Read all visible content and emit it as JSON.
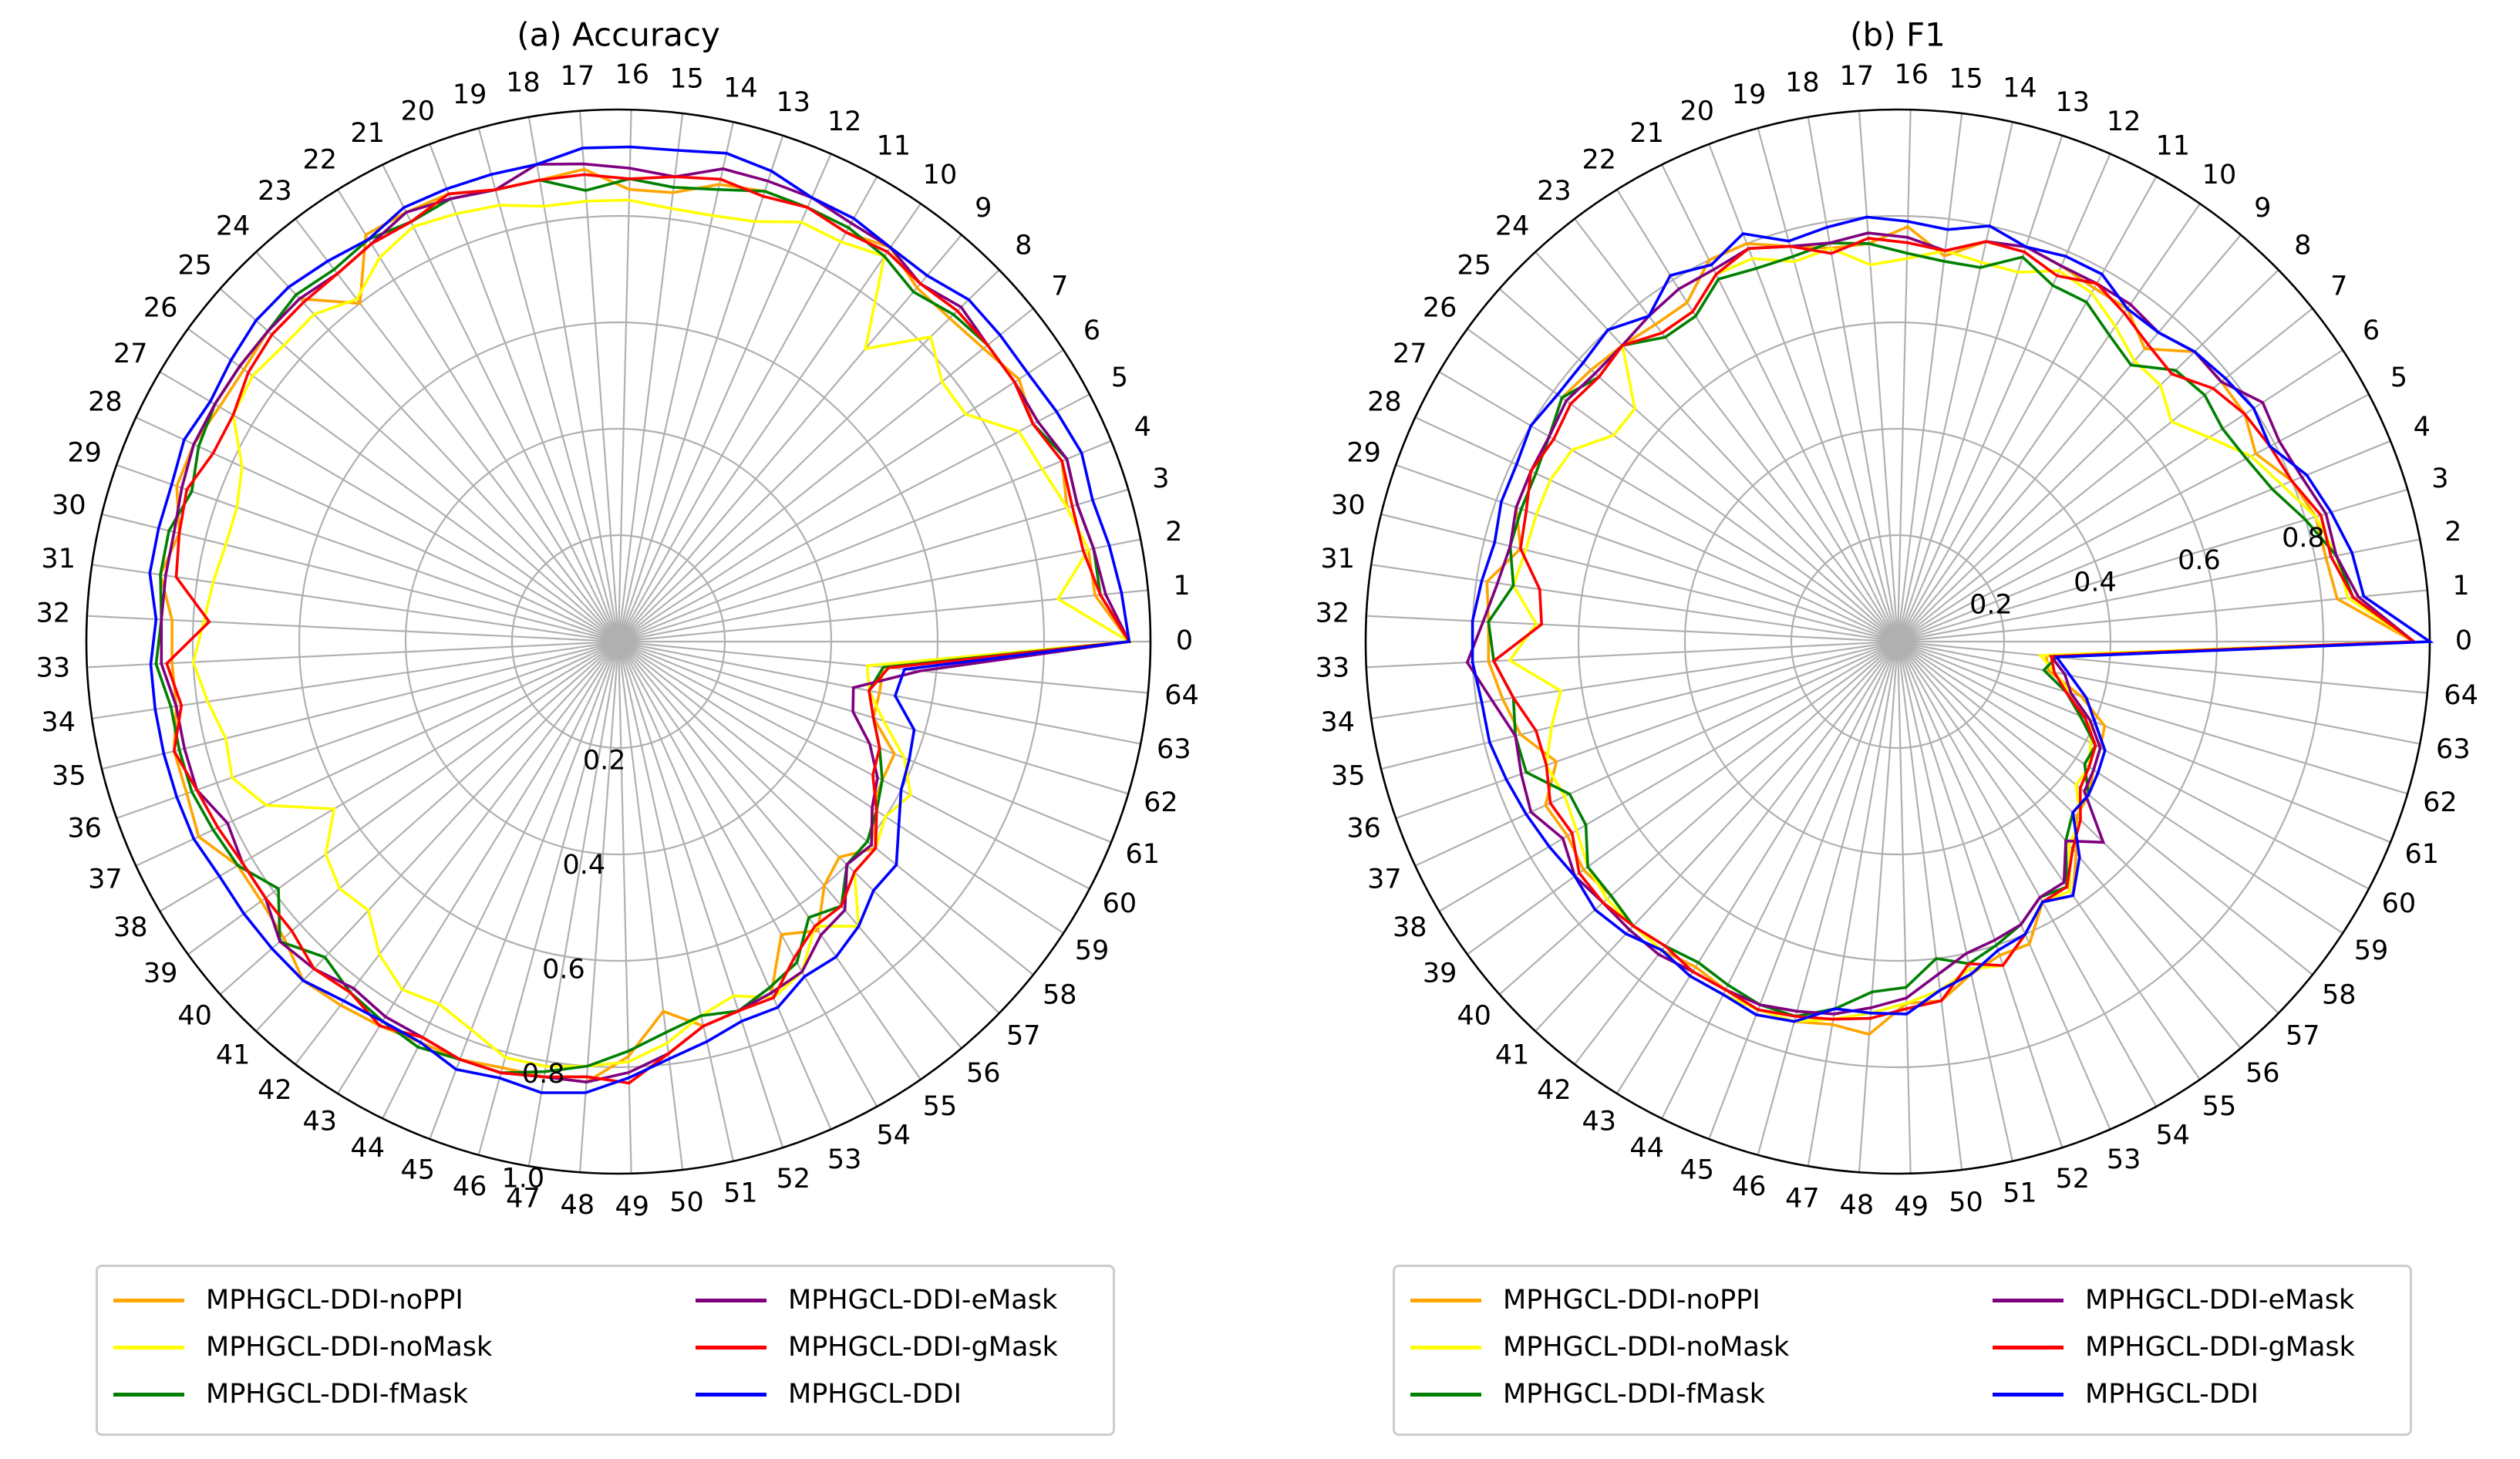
{
  "chart_data": [
    {
      "type": "radar",
      "title": "(a) Accuracy",
      "categories": [
        "0",
        "1",
        "2",
        "3",
        "4",
        "5",
        "6",
        "7",
        "8",
        "9",
        "10",
        "11",
        "12",
        "13",
        "14",
        "15",
        "16",
        "17",
        "18",
        "19",
        "20",
        "21",
        "22",
        "23",
        "24",
        "25",
        "26",
        "27",
        "28",
        "29",
        "30",
        "31",
        "32",
        "33",
        "34",
        "35",
        "36",
        "37",
        "38",
        "39",
        "40",
        "41",
        "42",
        "43",
        "44",
        "45",
        "46",
        "47",
        "48",
        "49",
        "50",
        "51",
        "52",
        "53",
        "54",
        "55",
        "56",
        "57",
        "58",
        "59",
        "60",
        "61",
        "62",
        "63",
        "64"
      ],
      "rticks": [
        0.2,
        0.4,
        0.6,
        0.8,
        1.0
      ],
      "rlim": [
        0,
        1.0
      ],
      "grid": true,
      "legend_position": "bottom",
      "series": [
        {
          "name": "MPHGCL-DDI-noPPI",
          "color": "#ffa500",
          "values": [
            0.96,
            0.9,
            0.9,
            0.88,
            0.9,
            0.88,
            0.9,
            0.88,
            0.87,
            0.87,
            0.9,
            0.88,
            0.89,
            0.89,
            0.88,
            0.85,
            0.85,
            0.89,
            0.88,
            0.88,
            0.9,
            0.9,
            0.9,
            0.8,
            0.88,
            0.88,
            0.87,
            0.87,
            0.88,
            0.88,
            0.85,
            0.87,
            0.84,
            0.84,
            0.84,
            0.86,
            0.86,
            0.87,
            0.83,
            0.83,
            0.84,
            0.87,
            0.86,
            0.85,
            0.84,
            0.84,
            0.83,
            0.83,
            0.83,
            0.78,
            0.7,
            0.74,
            0.73,
            0.72,
            0.63,
            0.66,
            0.6,
            0.58,
            0.62,
            0.57,
            0.56,
            0.56,
            0.5,
            0.5,
            0.5
          ]
        },
        {
          "name": "MPHGCL-DDI-noMask",
          "color": "#ffff00",
          "values": [
            0.96,
            0.83,
            0.9,
            0.88,
            0.86,
            0.85,
            0.78,
            0.78,
            0.82,
            0.72,
            0.88,
            0.86,
            0.86,
            0.83,
            0.82,
            0.82,
            0.83,
            0.83,
            0.83,
            0.85,
            0.86,
            0.87,
            0.85,
            0.81,
            0.84,
            0.84,
            0.85,
            0.84,
            0.78,
            0.76,
            0.76,
            0.77,
            0.78,
            0.8,
            0.78,
            0.76,
            0.77,
            0.73,
            0.62,
            0.68,
            0.7,
            0.69,
            0.74,
            0.77,
            0.76,
            0.78,
            0.81,
            0.81,
            0.8,
            0.79,
            0.76,
            0.72,
            0.7,
            0.73,
            0.71,
            0.65,
            0.7,
            0.62,
            0.62,
            0.6,
            0.62,
            0.58,
            0.52,
            0.48,
            0.47
          ]
        },
        {
          "name": "MPHGCL-DDI-fMask",
          "color": "#008000",
          "values": [
            0.96,
            0.91,
            0.91,
            0.9,
            0.91,
            0.88,
            0.89,
            0.89,
            0.88,
            0.86,
            0.88,
            0.89,
            0.89,
            0.89,
            0.87,
            0.86,
            0.87,
            0.85,
            0.88,
            0.88,
            0.89,
            0.88,
            0.89,
            0.88,
            0.89,
            0.88,
            0.88,
            0.88,
            0.87,
            0.85,
            0.87,
            0.87,
            0.86,
            0.87,
            0.85,
            0.85,
            0.85,
            0.84,
            0.83,
            0.79,
            0.85,
            0.81,
            0.83,
            0.84,
            0.85,
            0.84,
            0.84,
            0.82,
            0.8,
            0.77,
            0.74,
            0.72,
            0.73,
            0.71,
            0.69,
            0.63,
            0.65,
            0.6,
            0.6,
            0.58,
            0.56,
            0.53,
            0.5,
            0.48,
            0.5
          ]
        },
        {
          "name": "MPHGCL-DDI-eMask",
          "color": "#800080",
          "values": [
            0.96,
            0.92,
            0.91,
            0.9,
            0.91,
            0.89,
            0.89,
            0.89,
            0.9,
            0.88,
            0.9,
            0.9,
            0.91,
            0.91,
            0.91,
            0.88,
            0.89,
            0.9,
            0.91,
            0.88,
            0.89,
            0.9,
            0.88,
            0.87,
            0.88,
            0.88,
            0.88,
            0.88,
            0.88,
            0.87,
            0.86,
            0.86,
            0.86,
            0.86,
            0.84,
            0.84,
            0.84,
            0.81,
            0.82,
            0.82,
            0.85,
            0.84,
            0.82,
            0.83,
            0.83,
            0.84,
            0.84,
            0.83,
            0.83,
            0.81,
            0.78,
            0.74,
            0.73,
            0.72,
            0.71,
            0.67,
            0.66,
            0.6,
            0.61,
            0.57,
            0.55,
            0.51,
            0.46,
            0.45,
            0.57
          ]
        },
        {
          "name": "MPHGCL-DDI-gMask",
          "color": "#ff0000",
          "values": [
            0.96,
            0.91,
            0.89,
            0.89,
            0.9,
            0.88,
            0.89,
            0.89,
            0.89,
            0.88,
            0.89,
            0.88,
            0.89,
            0.88,
            0.89,
            0.88,
            0.87,
            0.88,
            0.88,
            0.88,
            0.9,
            0.88,
            0.88,
            0.87,
            0.87,
            0.87,
            0.86,
            0.84,
            0.84,
            0.86,
            0.85,
            0.84,
            0.77,
            0.85,
            0.83,
            0.86,
            0.84,
            0.83,
            0.82,
            0.82,
            0.82,
            0.84,
            0.83,
            0.85,
            0.83,
            0.84,
            0.84,
            0.83,
            0.82,
            0.83,
            0.78,
            0.74,
            0.73,
            0.73,
            0.68,
            0.65,
            0.65,
            0.62,
            0.62,
            0.58,
            0.54,
            0.53,
            0.5,
            0.48,
            0.51
          ]
        },
        {
          "name": "MPHGCL-DDI",
          "color": "#0000ff",
          "values": [
            0.96,
            0.95,
            0.94,
            0.93,
            0.94,
            0.93,
            0.92,
            0.92,
            0.92,
            0.9,
            0.9,
            0.91,
            0.91,
            0.93,
            0.94,
            0.93,
            0.93,
            0.93,
            0.91,
            0.91,
            0.91,
            0.91,
            0.89,
            0.9,
            0.91,
            0.91,
            0.9,
            0.89,
            0.9,
            0.89,
            0.89,
            0.89,
            0.87,
            0.88,
            0.88,
            0.88,
            0.88,
            0.88,
            0.87,
            0.87,
            0.87,
            0.87,
            0.85,
            0.84,
            0.84,
            0.86,
            0.85,
            0.86,
            0.85,
            0.82,
            0.79,
            0.77,
            0.75,
            0.75,
            0.72,
            0.72,
            0.7,
            0.67,
            0.67,
            0.63,
            0.6,
            0.59,
            0.58,
            0.53,
            0.54
          ]
        }
      ]
    },
    {
      "type": "radar",
      "title": "(b) F1",
      "categories": [
        "0",
        "1",
        "2",
        "3",
        "4",
        "5",
        "6",
        "7",
        "8",
        "9",
        "10",
        "11",
        "12",
        "13",
        "14",
        "15",
        "16",
        "17",
        "18",
        "19",
        "20",
        "21",
        "22",
        "23",
        "24",
        "25",
        "26",
        "27",
        "28",
        "29",
        "30",
        "31",
        "32",
        "33",
        "34",
        "35",
        "36",
        "37",
        "38",
        "39",
        "40",
        "41",
        "42",
        "43",
        "44",
        "45",
        "46",
        "47",
        "48",
        "49",
        "50",
        "51",
        "52",
        "53",
        "54",
        "55",
        "56",
        "57",
        "58",
        "59",
        "60",
        "61",
        "62",
        "63",
        "64"
      ],
      "rticks": [
        0.2,
        0.4,
        0.6,
        0.8
      ],
      "rlim": [
        0,
        1.0
      ],
      "grid": true,
      "legend_position": "bottom",
      "series": [
        {
          "name": "MPHGCL-DDI-noPPI",
          "color": "#ffa500",
          "values": [
            0.97,
            0.83,
            0.82,
            0.82,
            0.8,
            0.76,
            0.78,
            0.78,
            0.78,
            0.72,
            0.76,
            0.76,
            0.77,
            0.78,
            0.77,
            0.73,
            0.78,
            0.75,
            0.75,
            0.77,
            0.8,
            0.8,
            0.75,
            0.75,
            0.76,
            0.77,
            0.78,
            0.76,
            0.76,
            0.76,
            0.73,
            0.78,
            0.77,
            0.77,
            0.75,
            0.73,
            0.68,
            0.73,
            0.72,
            0.73,
            0.72,
            0.73,
            0.73,
            0.72,
            0.73,
            0.74,
            0.74,
            0.73,
            0.74,
            0.68,
            0.68,
            0.64,
            0.62,
            0.62,
            0.56,
            0.58,
            0.52,
            0.47,
            0.46,
            0.44,
            0.43,
            0.42,
            0.36,
            0.29,
            0.28
          ]
        },
        {
          "name": "MPHGCL-DDI-noMask",
          "color": "#ffff00",
          "values": [
            0.97,
            0.85,
            0.84,
            0.82,
            0.78,
            0.75,
            0.7,
            0.66,
            0.69,
            0.69,
            0.72,
            0.75,
            0.76,
            0.73,
            0.73,
            0.74,
            0.72,
            0.71,
            0.75,
            0.74,
            0.77,
            0.77,
            0.73,
            0.73,
            0.76,
            0.66,
            0.66,
            0.71,
            0.72,
            0.72,
            0.72,
            0.73,
            0.68,
            0.73,
            0.64,
            0.67,
            0.7,
            0.69,
            0.7,
            0.72,
            0.73,
            0.73,
            0.73,
            0.74,
            0.74,
            0.74,
            0.74,
            0.72,
            0.7,
            0.68,
            0.66,
            0.63,
            0.64,
            0.6,
            0.56,
            0.57,
            0.5,
            0.48,
            0.43,
            0.43,
            0.41,
            0.39,
            0.34,
            0.3,
            0.27
          ]
        },
        {
          "name": "MPHGCL-DDI-fMask",
          "color": "#008000",
          "values": [
            0.97,
            0.86,
            0.84,
            0.8,
            0.76,
            0.74,
            0.73,
            0.74,
            0.73,
            0.68,
            0.7,
            0.73,
            0.73,
            0.76,
            0.72,
            0.72,
            0.73,
            0.75,
            0.76,
            0.75,
            0.75,
            0.76,
            0.72,
            0.72,
            0.76,
            0.75,
            0.78,
            0.76,
            0.75,
            0.75,
            0.75,
            0.73,
            0.77,
            0.76,
            0.73,
            0.74,
            0.74,
            0.68,
            0.68,
            0.72,
            0.72,
            0.73,
            0.72,
            0.71,
            0.72,
            0.73,
            0.73,
            0.7,
            0.66,
            0.65,
            0.6,
            0.62,
            0.6,
            0.58,
            0.55,
            0.56,
            0.49,
            0.46,
            0.46,
            0.42,
            0.42,
            0.37,
            0.33,
            0.28,
            0.3
          ]
        },
        {
          "name": "MPHGCL-DDI-eMask",
          "color": "#800080",
          "values": [
            0.97,
            0.87,
            0.84,
            0.84,
            0.82,
            0.81,
            0.82,
            0.78,
            0.78,
            0.76,
            0.77,
            0.77,
            0.77,
            0.78,
            0.77,
            0.74,
            0.76,
            0.77,
            0.76,
            0.77,
            0.79,
            0.78,
            0.78,
            0.77,
            0.76,
            0.76,
            0.77,
            0.76,
            0.76,
            0.76,
            0.75,
            0.76,
            0.78,
            0.81,
            0.77,
            0.74,
            0.75,
            0.76,
            0.73,
            0.75,
            0.74,
            0.74,
            0.74,
            0.73,
            0.73,
            0.73,
            0.72,
            0.71,
            0.69,
            0.67,
            0.63,
            0.6,
            0.59,
            0.58,
            0.55,
            0.55,
            0.49,
            0.54,
            0.45,
            0.44,
            0.43,
            0.39,
            0.34,
            0.32,
            0.29
          ]
        },
        {
          "name": "MPHGCL-DDI-gMask",
          "color": "#ff0000",
          "values": [
            0.97,
            0.86,
            0.83,
            0.83,
            0.8,
            0.79,
            0.78,
            0.76,
            0.72,
            0.73,
            0.75,
            0.77,
            0.75,
            0.77,
            0.77,
            0.74,
            0.75,
            0.76,
            0.74,
            0.77,
            0.79,
            0.77,
            0.73,
            0.73,
            0.76,
            0.75,
            0.76,
            0.75,
            0.76,
            0.74,
            0.73,
            0.68,
            0.67,
            0.76,
            0.73,
            0.7,
            0.7,
            0.72,
            0.71,
            0.74,
            0.74,
            0.73,
            0.72,
            0.73,
            0.73,
            0.74,
            0.73,
            0.72,
            0.71,
            0.69,
            0.68,
            0.62,
            0.64,
            0.6,
            0.56,
            0.56,
            0.51,
            0.48,
            0.44,
            0.43,
            0.42,
            0.38,
            0.33,
            0.3,
            0.29
          ]
        },
        {
          "name": "MPHGCL-DDI",
          "color": "#0000ff",
          "values": [
            1.0,
            0.88,
            0.87,
            0.85,
            0.83,
            0.79,
            0.8,
            0.79,
            0.78,
            0.76,
            0.76,
            0.79,
            0.79,
            0.78,
            0.8,
            0.78,
            0.79,
            0.8,
            0.79,
            0.78,
            0.82,
            0.79,
            0.81,
            0.77,
            0.8,
            0.79,
            0.79,
            0.8,
            0.79,
            0.79,
            0.78,
            0.79,
            0.8,
            0.8,
            0.79,
            0.79,
            0.78,
            0.77,
            0.76,
            0.75,
            0.76,
            0.75,
            0.73,
            0.74,
            0.74,
            0.75,
            0.74,
            0.7,
            0.7,
            0.7,
            0.66,
            0.64,
            0.61,
            0.6,
            0.56,
            0.58,
            0.53,
            0.46,
            0.46,
            0.45,
            0.44,
            0.4,
            0.37,
            0.33,
            0.3
          ]
        }
      ]
    }
  ]
}
